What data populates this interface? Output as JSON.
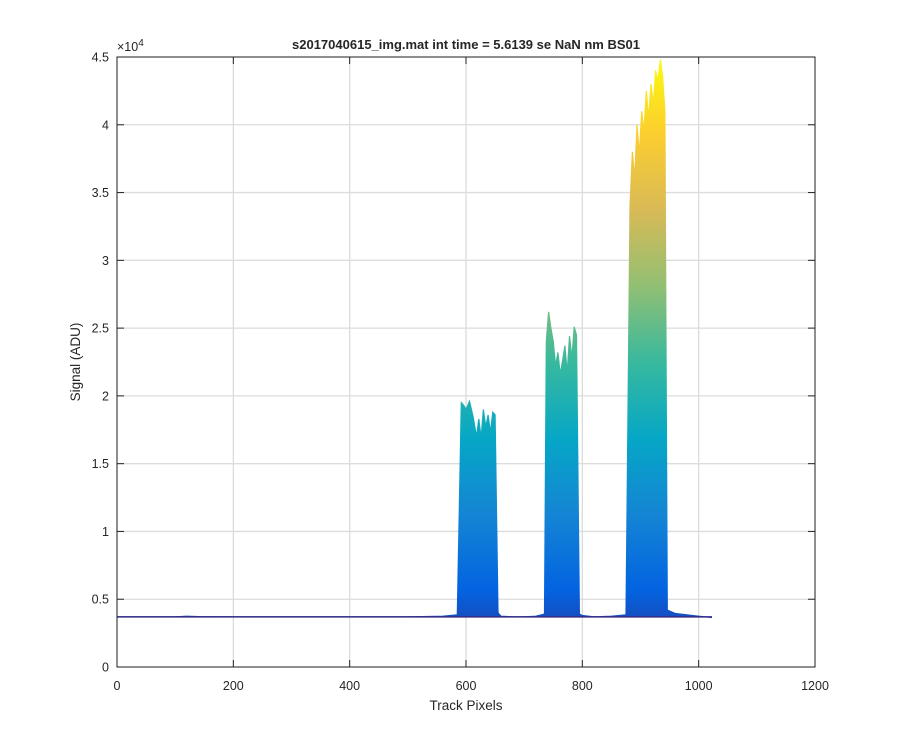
{
  "chart_data": {
    "type": "area",
    "title": "s2017040615_img.mat int time = 5.6139 se  NaN nm BS01",
    "xlabel": "Track Pixels",
    "ylabel": "Signal (ADU)",
    "xlim": [
      0,
      1200
    ],
    "ylim": [
      0,
      45000
    ],
    "xticks": [
      0,
      200,
      400,
      600,
      800,
      1000,
      1200
    ],
    "xtick_labels": [
      "0",
      "200",
      "400",
      "600",
      "800",
      "1000",
      "1200"
    ],
    "yticks": [
      0,
      5000,
      10000,
      15000,
      20000,
      25000,
      30000,
      35000,
      40000,
      45000
    ],
    "ytick_labels": [
      "0",
      "0.5",
      "1",
      "1.5",
      "2",
      "2.5",
      "3",
      "3.5",
      "4",
      "4.5"
    ],
    "y_exponent_label": "×10",
    "y_exponent_power": "4",
    "grid": true,
    "colormap": "parula",
    "colormap_stops": [
      "#352a87",
      "#0363e1",
      "#1485d4",
      "#06a7c6",
      "#38b99e",
      "#92bf73",
      "#d9ba56",
      "#fcce2e",
      "#f9fb0e"
    ],
    "baseline": 3700,
    "x": [
      0,
      100,
      120,
      140,
      200,
      300,
      400,
      500,
      560,
      585,
      592,
      596,
      600,
      606,
      612,
      618,
      622,
      626,
      630,
      634,
      638,
      642,
      646,
      650,
      655,
      660,
      680,
      700,
      720,
      735,
      738,
      742,
      746,
      750,
      754,
      758,
      762,
      766,
      770,
      774,
      778,
      782,
      786,
      790,
      795,
      800,
      820,
      850,
      875,
      882,
      886,
      890,
      894,
      898,
      902,
      906,
      910,
      914,
      918,
      922,
      926,
      930,
      934,
      938,
      942,
      946,
      960,
      980,
      1000,
      1023
    ],
    "values": [
      3700,
      3700,
      3750,
      3720,
      3700,
      3700,
      3700,
      3700,
      3750,
      3850,
      19500,
      19300,
      19000,
      19600,
      18500,
      17000,
      18300,
      16900,
      19000,
      17700,
      18600,
      17300,
      18800,
      18600,
      4000,
      3750,
      3700,
      3700,
      3750,
      3900,
      24000,
      26200,
      25000,
      24000,
      22200,
      23200,
      21600,
      22600,
      23700,
      21700,
      24400,
      22800,
      25100,
      24500,
      3900,
      3800,
      3700,
      3750,
      3850,
      34000,
      38000,
      36000,
      40000,
      37800,
      41000,
      39500,
      42500,
      40500,
      43000,
      41500,
      44000,
      43200,
      44800,
      43600,
      41000,
      4200,
      3950,
      3850,
      3750,
      3650
    ]
  }
}
